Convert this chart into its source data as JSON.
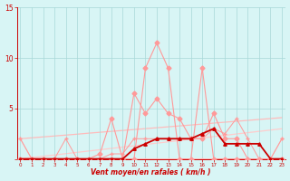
{
  "x": [
    0,
    1,
    2,
    3,
    4,
    5,
    6,
    7,
    8,
    9,
    10,
    11,
    12,
    13,
    14,
    15,
    16,
    17,
    18,
    19,
    20,
    21,
    22,
    23
  ],
  "line_rafales_max": [
    0.0,
    0.0,
    0.0,
    0.0,
    0.0,
    0.0,
    0.0,
    0.0,
    0.0,
    0.0,
    0.0,
    9.0,
    11.5,
    9.0,
    0.0,
    0.0,
    9.0,
    0.0,
    0.0,
    0.0,
    0.0,
    0.0,
    0.0,
    0.0
  ],
  "line_rafales_mid": [
    0.0,
    0.0,
    0.0,
    0.0,
    0.0,
    0.0,
    0.0,
    0.5,
    4.0,
    0.0,
    6.5,
    4.5,
    6.0,
    4.5,
    4.0,
    2.0,
    2.0,
    4.5,
    2.0,
    2.0,
    0.0,
    0.0,
    0.0,
    0.0
  ],
  "line_vent_moy": [
    0.0,
    0.0,
    0.0,
    0.0,
    0.0,
    0.0,
    0.0,
    0.0,
    0.0,
    0.0,
    1.0,
    1.5,
    2.0,
    2.0,
    2.0,
    2.0,
    2.5,
    3.0,
    1.5,
    1.5,
    1.5,
    1.5,
    0.0,
    0.0
  ],
  "line_base_high": [
    2.0,
    0.0,
    0.0,
    0.0,
    2.0,
    0.0,
    0.0,
    0.0,
    0.5,
    0.5,
    2.0,
    2.0,
    2.0,
    2.0,
    2.0,
    2.0,
    2.0,
    3.0,
    2.5,
    4.0,
    2.0,
    0.0,
    0.0,
    2.0
  ],
  "line_base_low": [
    2.0,
    0.0,
    0.0,
    0.0,
    0.0,
    0.0,
    0.0,
    0.0,
    0.0,
    0.0,
    0.0,
    0.0,
    0.0,
    0.0,
    0.0,
    0.0,
    0.0,
    0.0,
    0.0,
    0.0,
    0.0,
    0.0,
    0.0,
    2.0
  ],
  "trend_high": [
    2.0,
    2.09,
    2.18,
    2.27,
    2.36,
    2.45,
    2.55,
    2.64,
    2.73,
    2.82,
    2.91,
    3.0,
    3.09,
    3.18,
    3.27,
    3.36,
    3.45,
    3.55,
    3.64,
    3.73,
    3.82,
    3.91,
    4.0,
    4.09
  ],
  "trend_low": [
    0.0,
    0.13,
    0.26,
    0.39,
    0.52,
    0.65,
    0.78,
    0.91,
    1.04,
    1.17,
    1.3,
    1.43,
    1.56,
    1.69,
    1.82,
    1.95,
    2.08,
    2.21,
    2.34,
    2.47,
    2.6,
    2.73,
    2.86,
    2.99
  ],
  "bg_color": "#d8f5f5",
  "grid_color": "#a8d8d8",
  "line_rafales_max_color": "#ff9999",
  "line_rafales_mid_color": "#ff9999",
  "line_vent_moy_color": "#cc0000",
  "line_base_high_color": "#ff9999",
  "line_base_low_color": "#ffbbbb",
  "trend_high_color": "#ffbbbb",
  "trend_low_color": "#ffcccc",
  "axis_color": "#cc0000",
  "xlabel": "Vent moyen/en rafales ( km/h )",
  "ylim": [
    0,
    15
  ],
  "xlim": [
    -0.3,
    23.3
  ]
}
